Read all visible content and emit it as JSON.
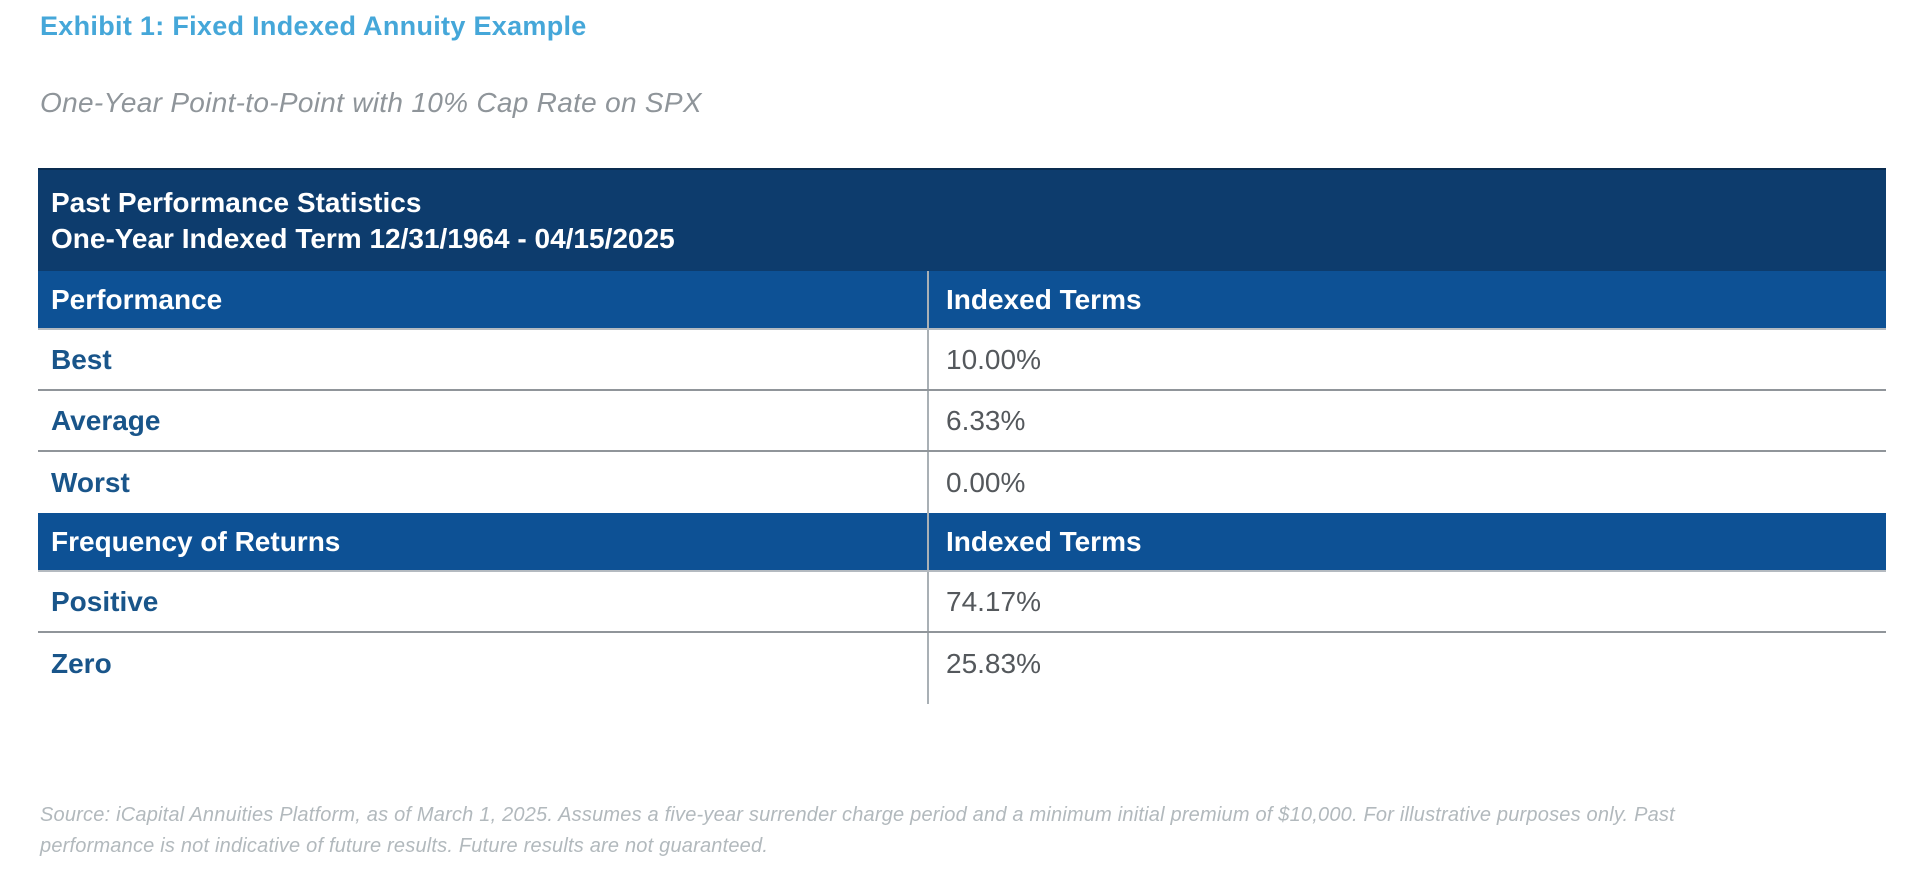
{
  "exhibit": {
    "title": "Exhibit 1: Fixed Indexed Annuity Example",
    "subtitle": "One-Year Point-to-Point with 10% Cap Rate on SPX"
  },
  "table": {
    "banner": {
      "line1": "Past Performance Statistics",
      "line2": "One-Year Indexed Term 12/31/1964 - 04/15/2025"
    },
    "sections": [
      {
        "header": {
          "label": "Performance",
          "value_col": "Indexed Terms"
        },
        "rows": [
          {
            "label": "Best",
            "value": "10.00%"
          },
          {
            "label": "Average",
            "value": "6.33%"
          },
          {
            "label": "Worst",
            "value": "0.00%"
          }
        ]
      },
      {
        "header": {
          "label": "Frequency of Returns",
          "value_col": "Indexed Terms"
        },
        "rows": [
          {
            "label": "Positive",
            "value": "74.17%"
          },
          {
            "label": "Zero",
            "value": "25.83%"
          }
        ]
      }
    ]
  },
  "footnote": {
    "line1": "Source: iCapital Annuities Platform, as of March 1, 2025. Assumes a five-year surrender charge period and a minimum initial premium of $10,000. For illustrative purposes only. Past",
    "line2": "performance is not indicative of future results. Future results are not guaranteed.",
    "full_text": "Source: iCapital Annuities Platform, as of March 1, 2025. Assumes a five-year surrender charge period and a minimum initial premium of $10,000. For illustrative purposes only. Past performance is not indicative of future results. Future results are not guaranteed."
  },
  "colors": {
    "exhibit_title_blue": "#45a7d9",
    "banner_navy": "#0d3c6d",
    "header_blue": "#0d5195",
    "row_label_blue": "#19558a",
    "value_gray": "#54585c",
    "subtitle_gray": "#8f959a",
    "footnote_gray": "#b2b9bd"
  }
}
